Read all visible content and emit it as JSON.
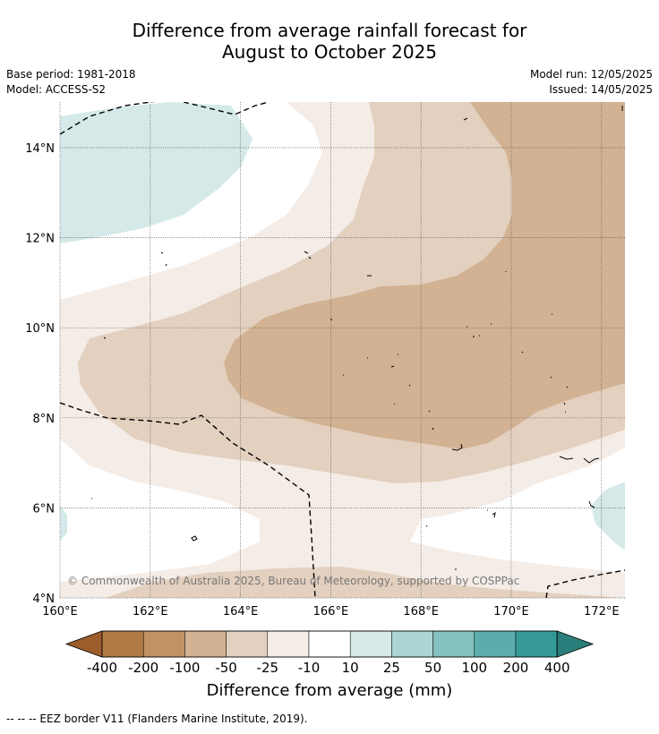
{
  "title": {
    "line1": "Difference from average rainfall forecast for",
    "line2": "August to October 2025"
  },
  "meta": {
    "base_period": "Base period: 1981-2018",
    "model": "Model: ACCESS-S2",
    "model_run": "Model run: 12/05/2025",
    "issued": "Issued: 14/05/2025"
  },
  "map": {
    "lon_labels": [
      "160°E",
      "162°E",
      "164°E",
      "166°E",
      "168°E",
      "170°E",
      "172°E"
    ],
    "lat_labels": [
      "4°N",
      "6°N",
      "8°N",
      "10°N",
      "12°N",
      "14°N"
    ],
    "copyright": "© Commonwealth of Australia 2025, Bureau of Meteorology, supported by COSPPac"
  },
  "colorbar": {
    "ticks": [
      "-400",
      "-200",
      "-100",
      "-50",
      "-25",
      "-10",
      "10",
      "25",
      "50",
      "100",
      "200",
      "400"
    ],
    "colors": {
      "lt_neg400": "#9a5d2b",
      "neg400_neg200": "#b07a43",
      "neg200_neg100": "#c09264",
      "neg100_neg50": "#d2b293",
      "neg50_neg25": "#e3d0bf",
      "neg25_neg10": "#f4ece6",
      "neg10_10": "#ffffff",
      "p10_25": "#d4e9e8",
      "p25_50": "#acd5d4",
      "p50_100": "#84c1c1",
      "p100_200": "#5aadac",
      "p200_400": "#359997",
      "gt_400": "#2a7f7d"
    },
    "label": "Difference from average (mm)"
  },
  "footnote": "--  --  -- EEZ border V11 (Flanders Marine Institute, 2019)."
}
